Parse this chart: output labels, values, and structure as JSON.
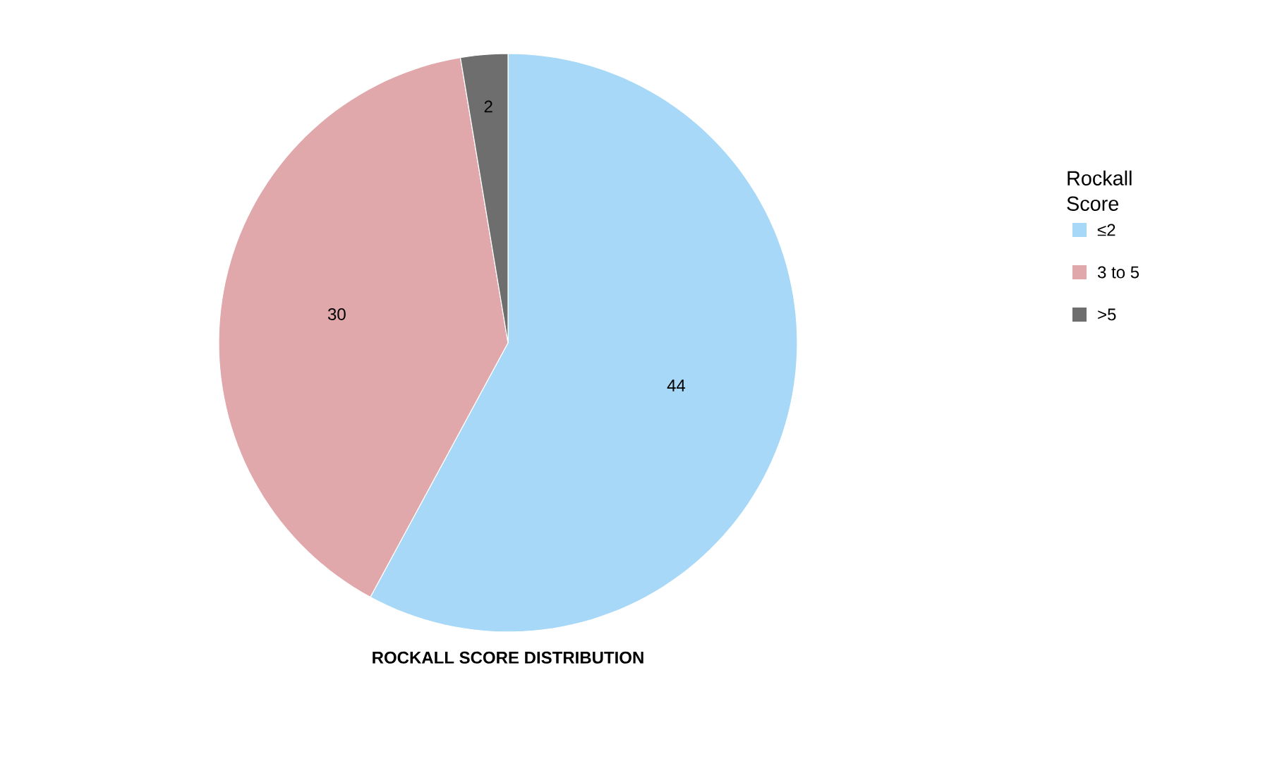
{
  "chart_data": {
    "type": "pie",
    "title": "ROCKALL SCORE DISTRIBUTION",
    "legend_title": "Rockall Score",
    "categories": [
      "≤2",
      "3 to 5",
      ">5"
    ],
    "values": [
      44,
      30,
      2
    ],
    "colors": [
      "#a8d8f8",
      "#e0a8aa",
      "#6e6e6e"
    ],
    "data_labels": true,
    "legend": "right"
  }
}
